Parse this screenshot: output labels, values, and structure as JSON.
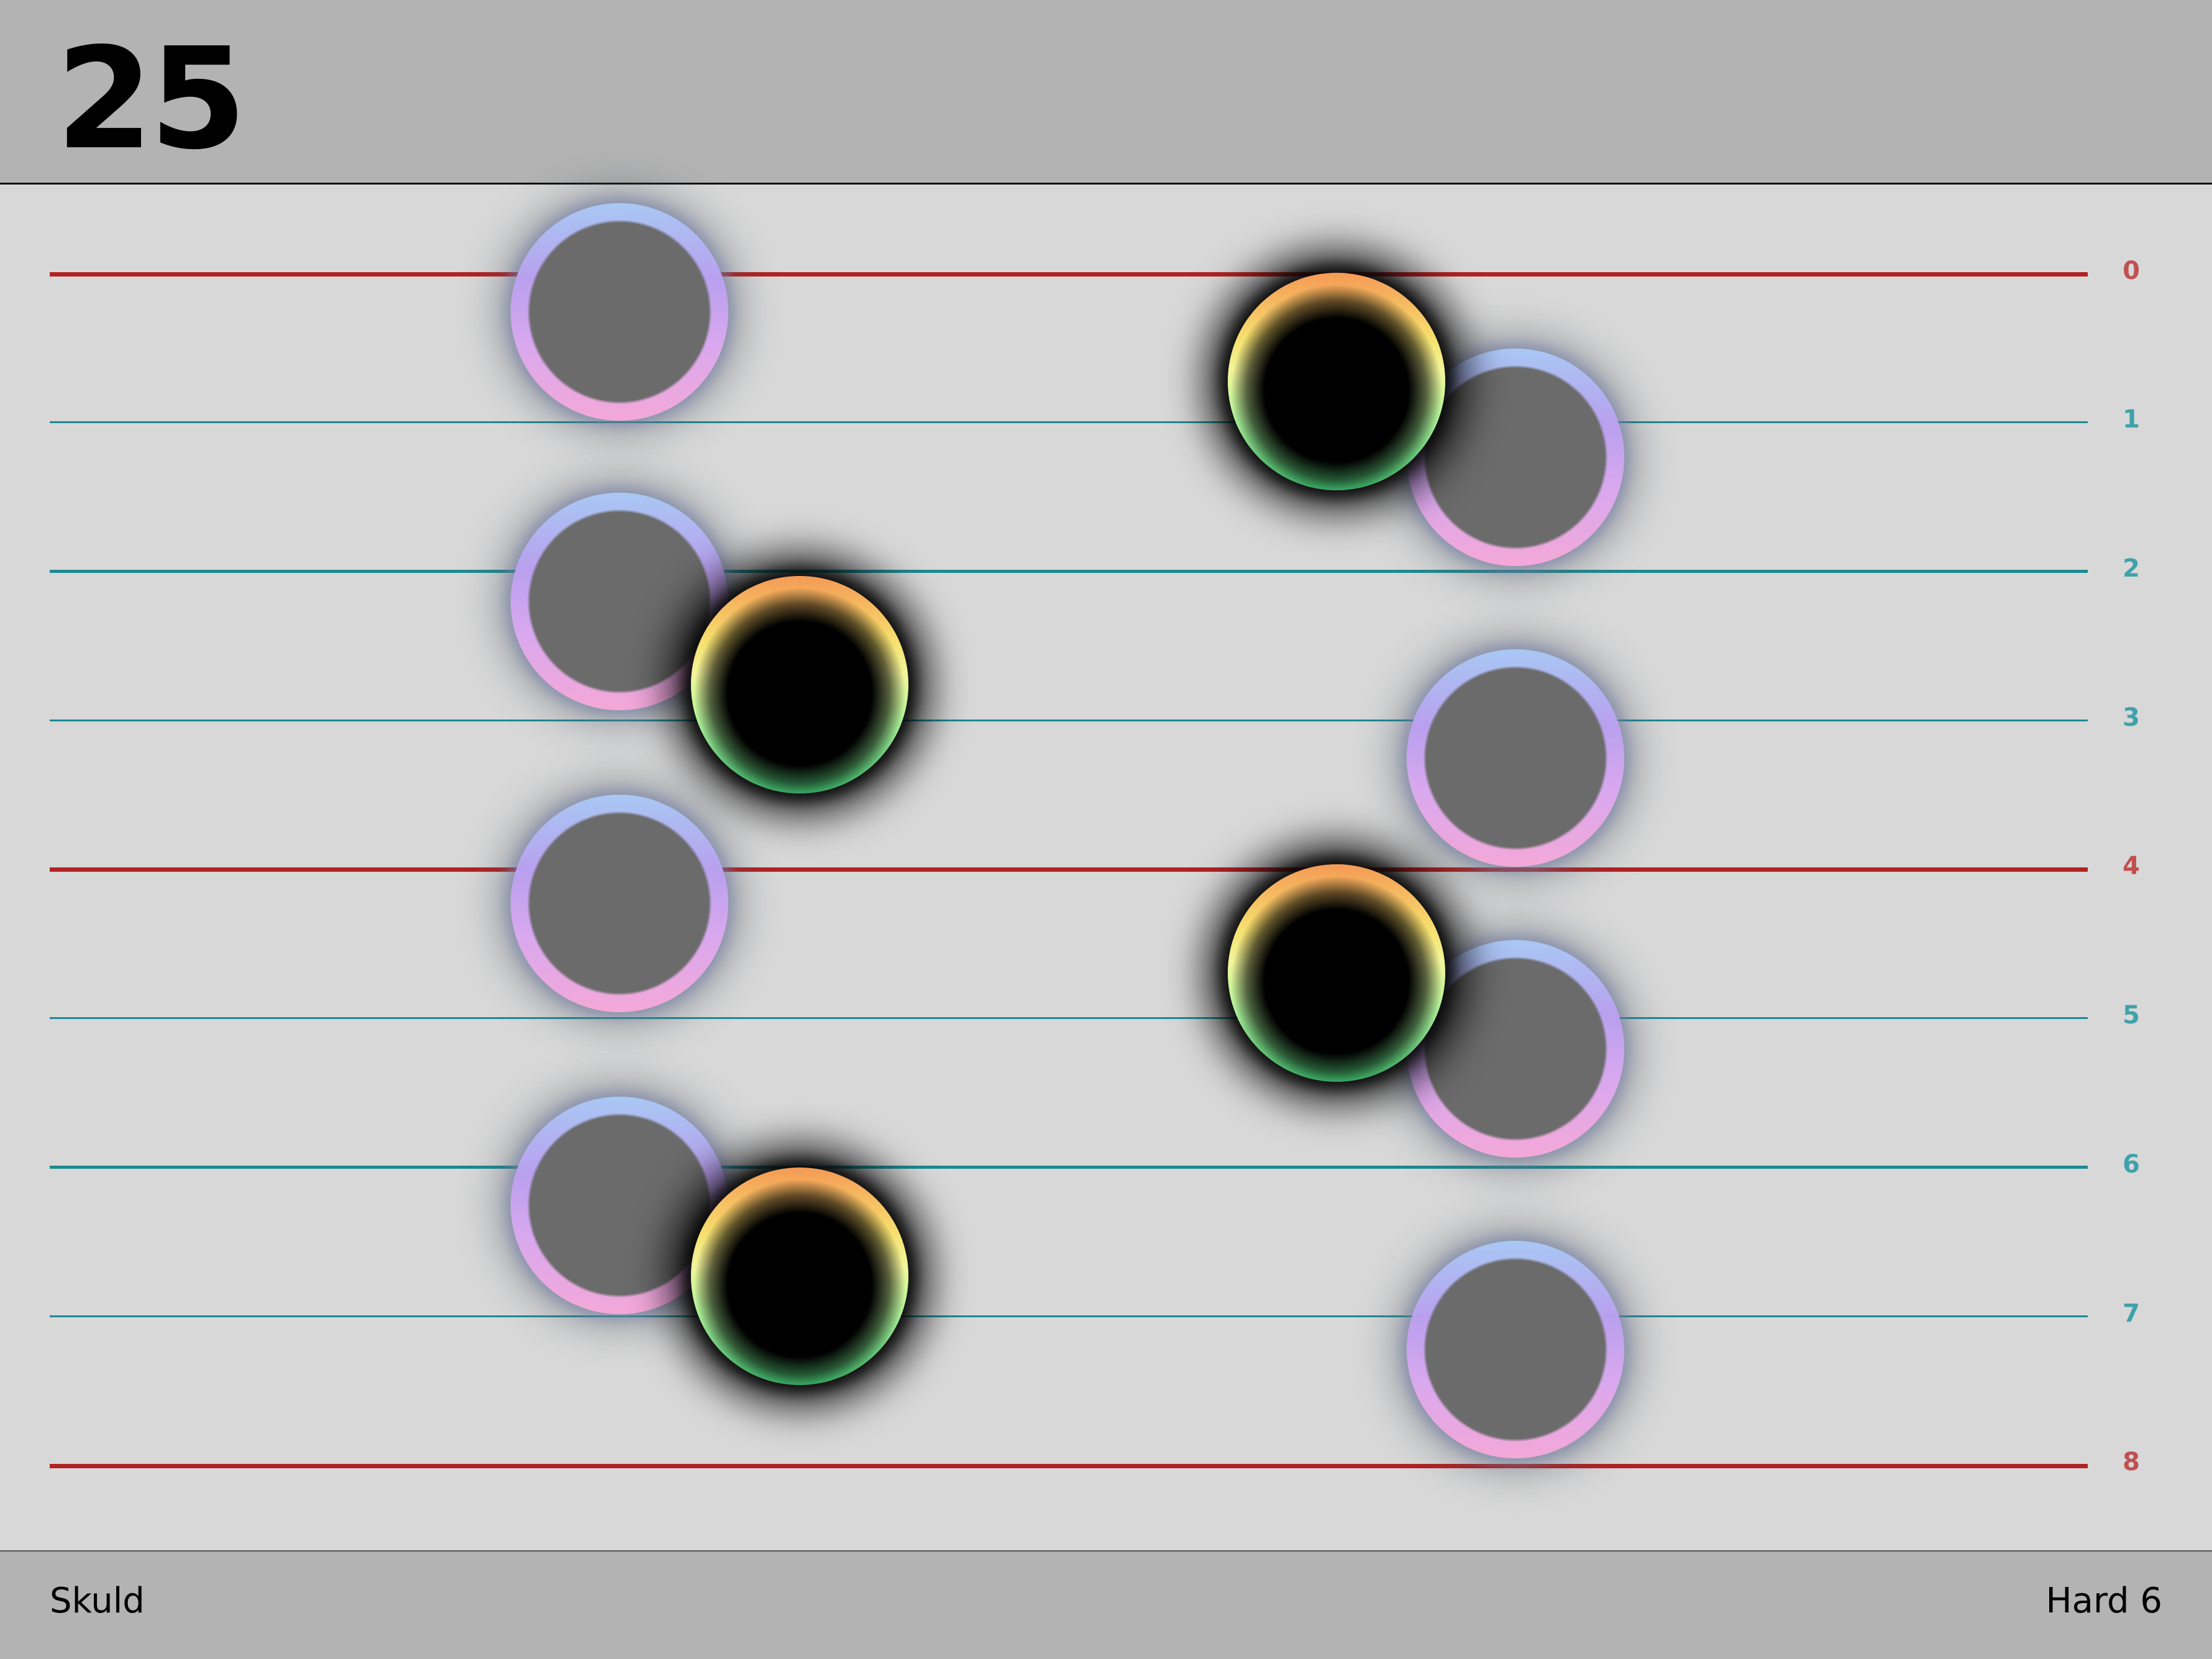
{
  "header": {
    "measure_number": "25"
  },
  "footer": {
    "song_title": "Skuld",
    "difficulty": "Hard 6"
  },
  "lanes": {
    "labels": [
      "0",
      "1",
      "2",
      "3",
      "4",
      "5",
      "6",
      "7",
      "8"
    ]
  },
  "colors": {
    "background": "#d8d8d8",
    "bar_background": "#b3b3b3",
    "major_line": "#b22222",
    "minor_line": "#1d8a91"
  },
  "notes": {
    "style_names": [
      "ghost-note",
      "hit-note"
    ]
  }
}
